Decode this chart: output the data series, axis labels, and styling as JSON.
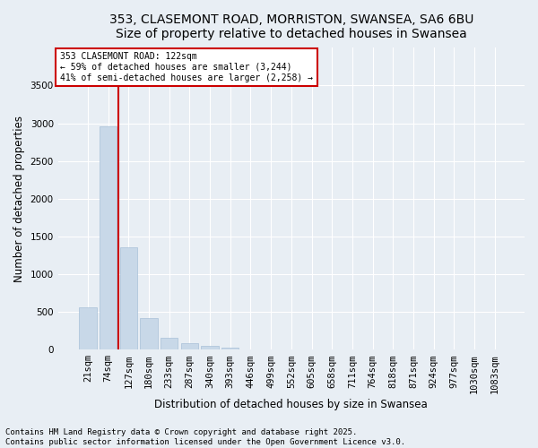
{
  "title_line1": "353, CLASEMONT ROAD, MORRISTON, SWANSEA, SA6 6BU",
  "title_line2": "Size of property relative to detached houses in Swansea",
  "xlabel": "Distribution of detached houses by size in Swansea",
  "ylabel": "Number of detached properties",
  "bar_color": "#c8d8e8",
  "bar_edgecolor": "#a8c0d8",
  "categories": [
    "21sqm",
    "74sqm",
    "127sqm",
    "180sqm",
    "233sqm",
    "287sqm",
    "340sqm",
    "393sqm",
    "446sqm",
    "499sqm",
    "552sqm",
    "605sqm",
    "658sqm",
    "711sqm",
    "764sqm",
    "818sqm",
    "871sqm",
    "924sqm",
    "977sqm",
    "1030sqm",
    "1083sqm"
  ],
  "values": [
    560,
    2960,
    1360,
    420,
    160,
    90,
    50,
    30,
    5,
    5,
    0,
    0,
    0,
    0,
    0,
    0,
    0,
    0,
    0,
    0,
    0
  ],
  "ylim": [
    0,
    4000
  ],
  "yticks": [
    0,
    500,
    1000,
    1500,
    2000,
    2500,
    3000,
    3500
  ],
  "annotation_box_text": "353 CLASEMONT ROAD: 122sqm\n← 59% of detached houses are smaller (3,244)\n41% of semi-detached houses are larger (2,258) →",
  "vline_color": "#cc0000",
  "vline_x_index": 1.5,
  "footer_line1": "Contains HM Land Registry data © Crown copyright and database right 2025.",
  "footer_line2": "Contains public sector information licensed under the Open Government Licence v3.0.",
  "background_color": "#e8eef4",
  "grid_color": "#ffffff",
  "title_fontsize": 10,
  "label_fontsize": 8.5,
  "tick_fontsize": 7.5,
  "footer_fontsize": 6.5
}
